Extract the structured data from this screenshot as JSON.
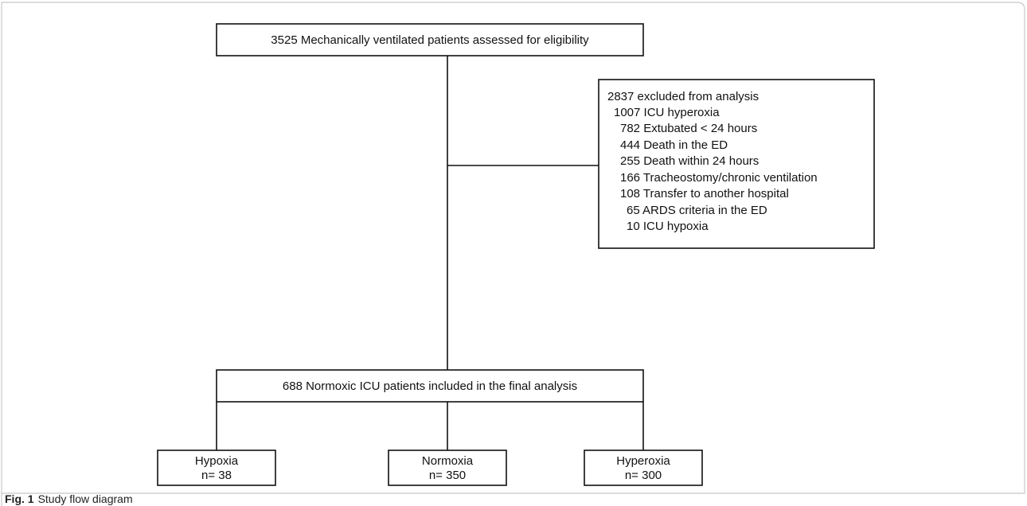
{
  "nodes": [
    {
      "label": "3525 Mechanically ventilated patients assessed for eligibility"
    },
    {
      "label": "688 Normoxic ICU patients included in the final analysis"
    },
    {
      "label": "Hypoxia",
      "count": "n= 38"
    },
    {
      "label": "Normoxia",
      "count": "n= 350"
    },
    {
      "label": "Hyperoxia",
      "count": "n= 300"
    }
  ],
  "excluded": {
    "title": "2837 excluded from analysis",
    "items": [
      "1007 ICU hyperoxia",
      "782 Extubated < 24 hours",
      "444 Death in the ED",
      "255 Death within 24 hours",
      "166 Tracheostomy/chronic ventilation",
      "108 Transfer to another hospital",
      "65 ARDS criteria in the ED",
      "10 ICU hypoxia"
    ]
  },
  "caption": {
    "label": "Fig. 1",
    "text": "Study flow diagram"
  }
}
